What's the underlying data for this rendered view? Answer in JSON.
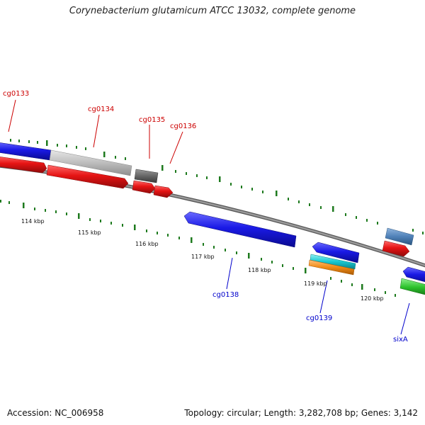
{
  "title": "Corynebacterium glutamicum ATCC 13032, complete genome",
  "footer": {
    "accession": "Accession: NC_006958",
    "summary": "Topology: circular; Length: 3,282,708 bp; Genes: 3,142"
  },
  "colors": {
    "cds_forward": "#1a1ae6",
    "cds_reverse": "#e61414",
    "pseudogene": "#bdbdbd",
    "gene_dark": "#666666",
    "backbone": "#808080",
    "tick": "#1e7a1e",
    "label_forward": "#0000cc",
    "label_reverse": "#cc0000"
  },
  "scale": {
    "ticks": [
      "114 kbp",
      "115 kbp",
      "116 kbp",
      "117 kbp",
      "118 kbp",
      "119 kbp",
      "120 kbp"
    ]
  },
  "gene_labels": {
    "forward": [
      "cg0138",
      "cg0139",
      "sixA"
    ],
    "reverse": [
      "cg0133",
      "cg0134",
      "cg0135",
      "cg0136"
    ]
  }
}
